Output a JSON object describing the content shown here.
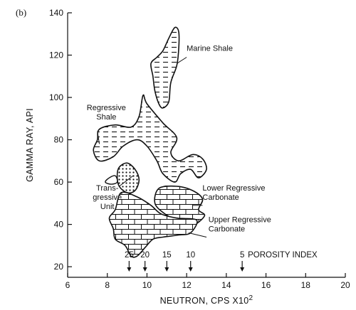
{
  "panel_label": "(b)",
  "colors": {
    "ink": "#111111",
    "paper": "#ffffff"
  },
  "chart_data": {
    "type": "scatter",
    "title": "",
    "xlabel": "NEUTRON, CPS X10",
    "xlabel_superscript": "2",
    "ylabel": "GAMMA RAY, API",
    "xlim": [
      6,
      20
    ],
    "ylim": [
      15,
      140
    ],
    "xticks": [
      6,
      8,
      10,
      12,
      14,
      16,
      18,
      20
    ],
    "yticks": [
      20,
      40,
      60,
      80,
      100,
      120,
      140
    ],
    "grid": false,
    "porosity_index": {
      "label": "POROSITY INDEX",
      "ticks": [
        {
          "label": "25",
          "x": 9.1
        },
        {
          "label": "20",
          "x": 9.9
        },
        {
          "label": "15",
          "x": 11.0
        },
        {
          "label": "10",
          "x": 12.2
        },
        {
          "label": "5",
          "x": 14.8
        }
      ]
    },
    "regions": [
      {
        "name": "Marine Shale",
        "pattern": "dashes",
        "outline": [
          [
            11.4,
            133
          ],
          [
            11.6,
            131
          ],
          [
            11.6,
            123
          ],
          [
            11.5,
            115
          ],
          [
            11.2,
            107
          ],
          [
            11.1,
            98
          ],
          [
            10.8,
            95
          ],
          [
            10.6,
            97
          ],
          [
            10.4,
            103
          ],
          [
            10.3,
            110
          ],
          [
            10.2,
            116
          ],
          [
            10.5,
            119
          ],
          [
            10.8,
            122
          ],
          [
            11.1,
            128
          ]
        ]
      },
      {
        "name": "Regressive Shale",
        "pattern": "dashes",
        "outline": [
          [
            7.6,
            85
          ],
          [
            8.4,
            87
          ],
          [
            9.2,
            86
          ],
          [
            9.6,
            91
          ],
          [
            9.8,
            101
          ],
          [
            10.0,
            97
          ],
          [
            10.8,
            88
          ],
          [
            11.5,
            81
          ],
          [
            11.2,
            74
          ],
          [
            11.6,
            70
          ],
          [
            12.3,
            73
          ],
          [
            12.8,
            71
          ],
          [
            13.0,
            66
          ],
          [
            12.6,
            62
          ],
          [
            12.2,
            66
          ],
          [
            11.7,
            64
          ],
          [
            11.4,
            60
          ],
          [
            10.8,
            64
          ],
          [
            10.5,
            70
          ],
          [
            10.0,
            77
          ],
          [
            9.5,
            80
          ],
          [
            8.8,
            77
          ],
          [
            8.3,
            72
          ],
          [
            7.6,
            70
          ],
          [
            7.3,
            75
          ],
          [
            7.5,
            80
          ]
        ]
      },
      {
        "name": "Transgressive Unit",
        "pattern": "dots",
        "outline": [
          [
            8.6,
            67
          ],
          [
            9.0,
            69
          ],
          [
            9.4,
            66
          ],
          [
            9.6,
            61
          ],
          [
            9.4,
            56
          ],
          [
            9.0,
            55
          ],
          [
            8.6,
            58
          ],
          [
            8.5,
            63
          ]
        ]
      },
      {
        "name": "Transgressive Unit",
        "pattern": "dots",
        "outline": [
          [
            10.9,
            58
          ],
          [
            11.6,
            57
          ],
          [
            12.0,
            56
          ],
          [
            11.8,
            51
          ],
          [
            11.2,
            50
          ],
          [
            10.8,
            52
          ],
          [
            10.6,
            55
          ]
        ]
      },
      {
        "name": "Lower Regressive Carbonate",
        "pattern": "brick",
        "outline": [
          [
            10.6,
            57
          ],
          [
            11.5,
            58
          ],
          [
            12.3,
            56
          ],
          [
            12.8,
            52
          ],
          [
            12.6,
            47
          ],
          [
            12.9,
            44
          ],
          [
            12.2,
            39
          ],
          [
            11.5,
            42
          ],
          [
            10.9,
            45
          ],
          [
            10.4,
            50
          ]
        ]
      },
      {
        "name": "Upper Regressive Carbonate",
        "pattern": "brick",
        "outline": [
          [
            8.7,
            55
          ],
          [
            9.5,
            53
          ],
          [
            10.2,
            49
          ],
          [
            10.7,
            45
          ],
          [
            11.5,
            43
          ],
          [
            12.5,
            42
          ],
          [
            12.2,
            36
          ],
          [
            11.6,
            35
          ],
          [
            10.8,
            34
          ],
          [
            10.3,
            33
          ],
          [
            9.9,
            29
          ],
          [
            9.5,
            25
          ],
          [
            9.2,
            25
          ],
          [
            8.9,
            30
          ],
          [
            8.4,
            33
          ],
          [
            8.3,
            38
          ],
          [
            8.1,
            43
          ],
          [
            8.4,
            47
          ]
        ]
      }
    ],
    "annotations": [
      {
        "text": "Marine Shale",
        "lines": [
          "Marine Shale"
        ]
      },
      {
        "text": "Regressive Shale",
        "lines": [
          "Regressive",
          "Shale"
        ]
      },
      {
        "text": "Transgressive Unit",
        "lines": [
          "Trans-",
          "gressive",
          "Unit"
        ]
      },
      {
        "text": "Lower Regressive Carbonate",
        "lines": [
          "Lower Regressive",
          "Carbonate"
        ]
      },
      {
        "text": "Upper Regressive Carbonate",
        "lines": [
          "Upper Regressive",
          "Carbonate"
        ]
      }
    ]
  }
}
